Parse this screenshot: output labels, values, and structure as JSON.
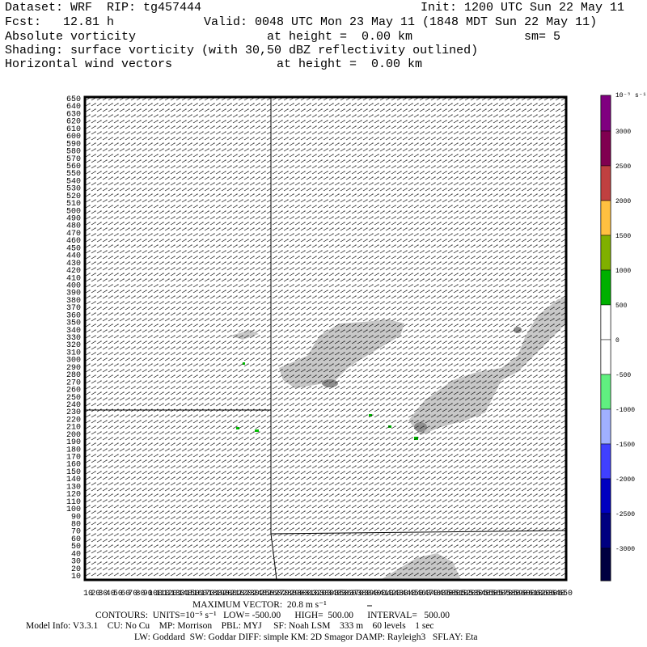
{
  "header": {
    "dataset": "Dataset: WRF  RIP: tg457444",
    "init": "Init: 1200 UTC Sun 22 May 11",
    "fcst": "Fcst:   12.81 h",
    "valid": "Valid: 0048 UTC Mon 23 May 11 (1848 MDT Sun 22 May 11)",
    "field1": "Absolute vorticity",
    "field1_height": "at height =  0.00 km",
    "smoothing": "sm= 5",
    "shading": "Shading: surface vorticity (with 30,50 dBZ reflectivity outlined)",
    "field2": "Horizontal wind vectors",
    "field2_height": "at height =  0.00 km"
  },
  "plot": {
    "y_labels": [
      650,
      640,
      630,
      620,
      610,
      600,
      590,
      580,
      570,
      560,
      550,
      540,
      530,
      520,
      510,
      500,
      490,
      480,
      470,
      460,
      450,
      440,
      430,
      420,
      410,
      400,
      390,
      380,
      370,
      360,
      350,
      340,
      330,
      320,
      310,
      300,
      290,
      280,
      270,
      260,
      250,
      240,
      230,
      220,
      210,
      200,
      190,
      180,
      170,
      160,
      150,
      140,
      130,
      120,
      110,
      100,
      90,
      80,
      70,
      60,
      50,
      40,
      30,
      20,
      10
    ],
    "x_labels": [
      10,
      20,
      30,
      40,
      50,
      60,
      70,
      80,
      90,
      100,
      110,
      120,
      130,
      140,
      150,
      160,
      170,
      180,
      190,
      200,
      210,
      220,
      230,
      240,
      250,
      260,
      270,
      280,
      290,
      300,
      310,
      320,
      330,
      340,
      350,
      360,
      370,
      380,
      390,
      400,
      410,
      420,
      430,
      440,
      450,
      460,
      470,
      480,
      490,
      500,
      510,
      520,
      530,
      540,
      550,
      560,
      570,
      580,
      590,
      600,
      610,
      620,
      630,
      640,
      650
    ]
  },
  "colorbar": {
    "units": "10⁻⁵ s⁻¹",
    "labels": [
      3000,
      2500,
      2000,
      1500,
      1000,
      500,
      0,
      -500,
      -1000,
      -1500,
      -2000,
      -2500,
      -3000
    ],
    "colors": [
      "#800080",
      "#800050",
      "#c04040",
      "#ffc040",
      "#80b000",
      "#00b000",
      "#ffffff",
      "#ffffff",
      "#60f080",
      "#a0b0ff",
      "#4040ff",
      "#0000c0",
      "#000080",
      "#000040"
    ]
  },
  "footer": {
    "max_vector": "MAXIMUM VECTOR:  20.8 m s⁻¹",
    "contours": "CONTOURS:  UNITS=10⁻⁵ s⁻¹   LOW= -500.00      HIGH=  500.00      INTERVAL=   500.00",
    "model_info": "Model Info: V3.3.1    CU: No Cu    MP: Morrison    PBL: MYJ     SF: Noah LSM    333 m    60 levels    1 sec",
    "physics": "LW: Goddard  SW: Goddar DIFF: simple KM: 2D Smagor DAMP: Rayleigh3   SFLAY: Eta"
  }
}
